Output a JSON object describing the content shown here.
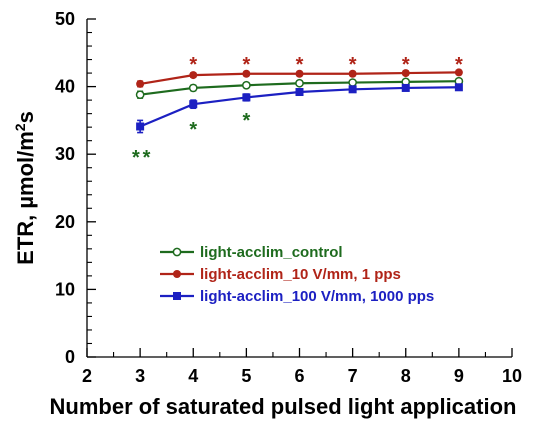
{
  "chart_data": {
    "type": "line",
    "title": "",
    "xlabel": "Number of saturated pulsed light application",
    "ylabel_main": "ETR, µmol/m",
    "ylabel_sup": "2",
    "ylabel_tail": "s",
    "xlim": [
      2,
      10
    ],
    "ylim": [
      0,
      50
    ],
    "x_ticks": [
      "2",
      "3",
      "4",
      "5",
      "6",
      "7",
      "8",
      "9",
      "10"
    ],
    "y_ticks": [
      "0",
      "10",
      "20",
      "30",
      "40",
      "50"
    ],
    "grid": false,
    "legend_position": "lower-left",
    "series": [
      {
        "name": "light-acclim_control",
        "color": "#1e6b1e",
        "marker": "open-circle",
        "x": [
          3,
          4,
          5,
          6,
          7,
          8,
          9
        ],
        "y": [
          38.8,
          39.8,
          40.2,
          40.5,
          40.6,
          40.7,
          40.8
        ],
        "err": [
          0.5,
          0.4,
          0.3,
          0.3,
          0.3,
          0.3,
          0.3
        ]
      },
      {
        "name": "light-acclim_10 V/mm, 1 pps",
        "color": "#b02418",
        "marker": "filled-circle",
        "x": [
          3,
          4,
          5,
          6,
          7,
          8,
          9
        ],
        "y": [
          40.4,
          41.7,
          41.9,
          41.9,
          41.9,
          42.0,
          42.1
        ],
        "err": [
          0.4,
          0.3,
          0.3,
          0.3,
          0.3,
          0.3,
          0.3
        ]
      },
      {
        "name": "light-acclim_100 V/mm, 1000 pps",
        "color": "#1c20c2",
        "marker": "filled-square",
        "x": [
          3,
          4,
          5,
          6,
          7,
          8,
          9
        ],
        "y": [
          34.1,
          37.4,
          38.4,
          39.2,
          39.6,
          39.8,
          39.9
        ],
        "err": [
          0.9,
          0.6,
          0.5,
          0.4,
          0.4,
          0.4,
          0.4
        ]
      }
    ],
    "annotations": [
      {
        "text": "*",
        "x": 4,
        "y": 43.8,
        "color": "#b02418"
      },
      {
        "text": "*",
        "x": 5,
        "y": 43.8,
        "color": "#b02418"
      },
      {
        "text": "*",
        "x": 6,
        "y": 43.8,
        "color": "#b02418"
      },
      {
        "text": "*",
        "x": 7,
        "y": 43.8,
        "color": "#b02418"
      },
      {
        "text": "*",
        "x": 8,
        "y": 43.8,
        "color": "#b02418"
      },
      {
        "text": "*",
        "x": 9,
        "y": 43.8,
        "color": "#b02418"
      },
      {
        "text": "*",
        "x": 4,
        "y": 34.2,
        "color": "#1e6b1e"
      },
      {
        "text": "*",
        "x": 5,
        "y": 35.5,
        "color": "#1e6b1e"
      },
      {
        "text": "*",
        "x": 2.92,
        "y": 30.0,
        "color": "#1e6b1e"
      },
      {
        "text": "*",
        "x": 3.12,
        "y": 30.0,
        "color": "#1e6b1e"
      }
    ]
  }
}
